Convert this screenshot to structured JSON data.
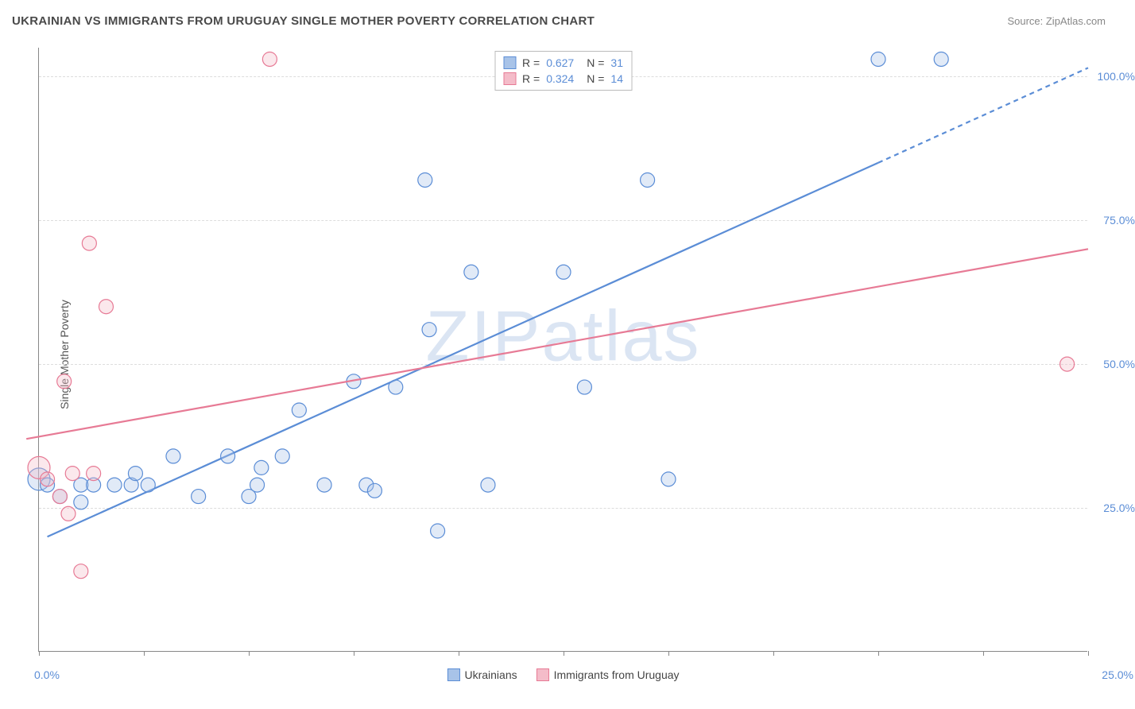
{
  "title": "UKRAINIAN VS IMMIGRANTS FROM URUGUAY SINGLE MOTHER POVERTY CORRELATION CHART",
  "source_label": "Source: ZipAtlas.com",
  "ylabel": "Single Mother Poverty",
  "watermark": "ZIPatlas",
  "chart": {
    "type": "scatter",
    "xlim": [
      0.0,
      25.0
    ],
    "ylim": [
      0.0,
      105.0
    ],
    "xticks": [
      0,
      2.5,
      5,
      7.5,
      10,
      12.5,
      15,
      17.5,
      20,
      22.5,
      25
    ],
    "xtick_labels": {
      "0": "0.0%",
      "25": "25.0%"
    },
    "yticks": [
      25.0,
      50.0,
      75.0,
      100.0
    ],
    "ytick_labels": [
      "25.0%",
      "50.0%",
      "75.0%",
      "100.0%"
    ],
    "grid_color": "#dddddd",
    "axis_color": "#888888",
    "background_color": "#ffffff",
    "marker_radius": 9,
    "marker_radius_large": 14,
    "marker_fill_opacity": 0.35,
    "marker_stroke_width": 1.2,
    "line_width": 2.2,
    "series": [
      {
        "name": "Ukrainians",
        "color": "#5b8dd6",
        "fill": "#a8c3e8",
        "r_value": "0.627",
        "n_value": "31",
        "trend": {
          "x1": 0.2,
          "y1": 20.0,
          "x2": 20.0,
          "y2": 85.0,
          "dash_from_x": 20.0,
          "dash_to_x": 25.0,
          "dash_to_y": 101.5
        },
        "points": [
          {
            "x": 0.0,
            "y": 30.0,
            "r": 14
          },
          {
            "x": 0.2,
            "y": 29.0
          },
          {
            "x": 0.5,
            "y": 27.0
          },
          {
            "x": 1.0,
            "y": 26.0
          },
          {
            "x": 1.0,
            "y": 29.0
          },
          {
            "x": 1.3,
            "y": 29.0
          },
          {
            "x": 1.8,
            "y": 29.0
          },
          {
            "x": 2.2,
            "y": 29.0
          },
          {
            "x": 2.6,
            "y": 29.0
          },
          {
            "x": 2.3,
            "y": 31.0
          },
          {
            "x": 3.2,
            "y": 34.0
          },
          {
            "x": 3.8,
            "y": 27.0
          },
          {
            "x": 4.5,
            "y": 34.0
          },
          {
            "x": 5.0,
            "y": 27.0
          },
          {
            "x": 5.2,
            "y": 29.0
          },
          {
            "x": 5.3,
            "y": 32.0
          },
          {
            "x": 5.8,
            "y": 34.0
          },
          {
            "x": 6.2,
            "y": 42.0
          },
          {
            "x": 6.8,
            "y": 29.0
          },
          {
            "x": 7.5,
            "y": 47.0
          },
          {
            "x": 7.8,
            "y": 29.0
          },
          {
            "x": 8.0,
            "y": 28.0
          },
          {
            "x": 8.5,
            "y": 46.0
          },
          {
            "x": 9.2,
            "y": 82.0
          },
          {
            "x": 9.3,
            "y": 56.0
          },
          {
            "x": 9.5,
            "y": 21.0
          },
          {
            "x": 10.3,
            "y": 66.0
          },
          {
            "x": 10.7,
            "y": 29.0
          },
          {
            "x": 12.5,
            "y": 66.0
          },
          {
            "x": 13.0,
            "y": 46.0
          },
          {
            "x": 14.5,
            "y": 82.0
          },
          {
            "x": 15.0,
            "y": 30.0
          },
          {
            "x": 20.0,
            "y": 103.0
          },
          {
            "x": 21.5,
            "y": 103.0
          }
        ]
      },
      {
        "name": "Immigrants from Uruguay",
        "color": "#e77a95",
        "fill": "#f4bcc9",
        "r_value": "0.324",
        "n_value": "14",
        "trend": {
          "x1": -0.3,
          "y1": 37.0,
          "x2": 25.0,
          "y2": 70.0
        },
        "points": [
          {
            "x": 0.0,
            "y": 32.0,
            "r": 14
          },
          {
            "x": 0.2,
            "y": 30.0
          },
          {
            "x": 0.5,
            "y": 27.0
          },
          {
            "x": 0.6,
            "y": 47.0
          },
          {
            "x": 0.7,
            "y": 24.0
          },
          {
            "x": 0.8,
            "y": 31.0
          },
          {
            "x": 1.0,
            "y": 14.0
          },
          {
            "x": 1.2,
            "y": 71.0
          },
          {
            "x": 1.3,
            "y": 31.0
          },
          {
            "x": 1.6,
            "y": 60.0
          },
          {
            "x": 5.5,
            "y": 103.0
          },
          {
            "x": 24.5,
            "y": 50.0
          }
        ]
      }
    ]
  },
  "legend_top": [
    {
      "swatch_fill": "#a8c3e8",
      "swatch_border": "#5b8dd6",
      "r": "0.627",
      "n": "31"
    },
    {
      "swatch_fill": "#f4bcc9",
      "swatch_border": "#e77a95",
      "r": "0.324",
      "n": "14"
    }
  ],
  "legend_bottom": [
    {
      "swatch_fill": "#a8c3e8",
      "swatch_border": "#5b8dd6",
      "label": "Ukrainians"
    },
    {
      "swatch_fill": "#f4bcc9",
      "swatch_border": "#e77a95",
      "label": "Immigrants from Uruguay"
    }
  ]
}
